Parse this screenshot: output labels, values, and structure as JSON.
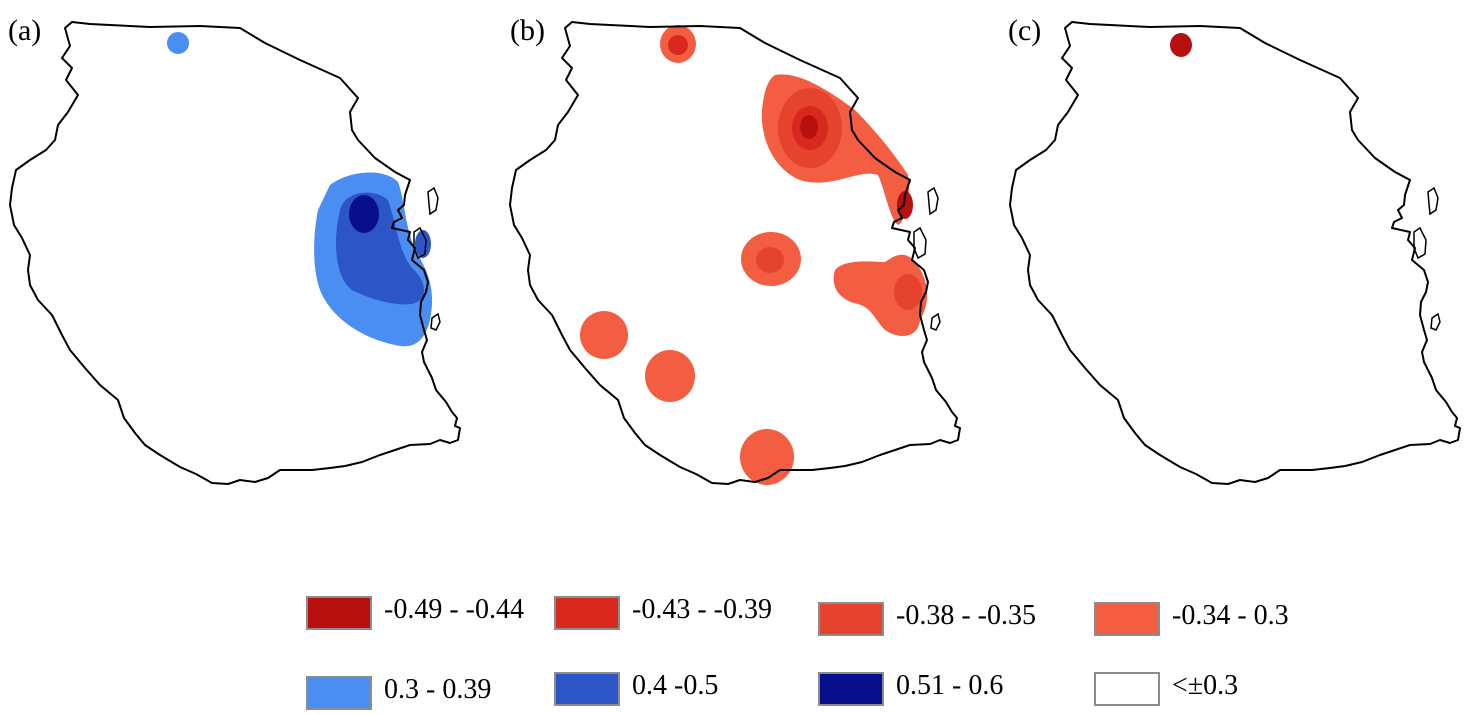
{
  "panels": [
    {
      "label": "(a)"
    },
    {
      "label": "(b)"
    },
    {
      "label": "(c)"
    }
  ],
  "legend": [
    {
      "label": "-0.49 - -0.44",
      "color": "#b80f0f"
    },
    {
      "label": "-0.43 - -0.39",
      "color": "#d9291e"
    },
    {
      "label": "-0.38 - -0.35",
      "color": "#e5432d"
    },
    {
      "label": "-0.34 - 0.3",
      "color": "#f35d42"
    },
    {
      "label": "0.3 - 0.39",
      "color": "#4a8ef2"
    },
    {
      "label": "0.4 -0.5",
      "color": "#2c56c8"
    },
    {
      "label": "0.51 - 0.6",
      "color": "#060e8c"
    },
    {
      "label": "<±0.3",
      "color": "#ffffff"
    }
  ]
}
